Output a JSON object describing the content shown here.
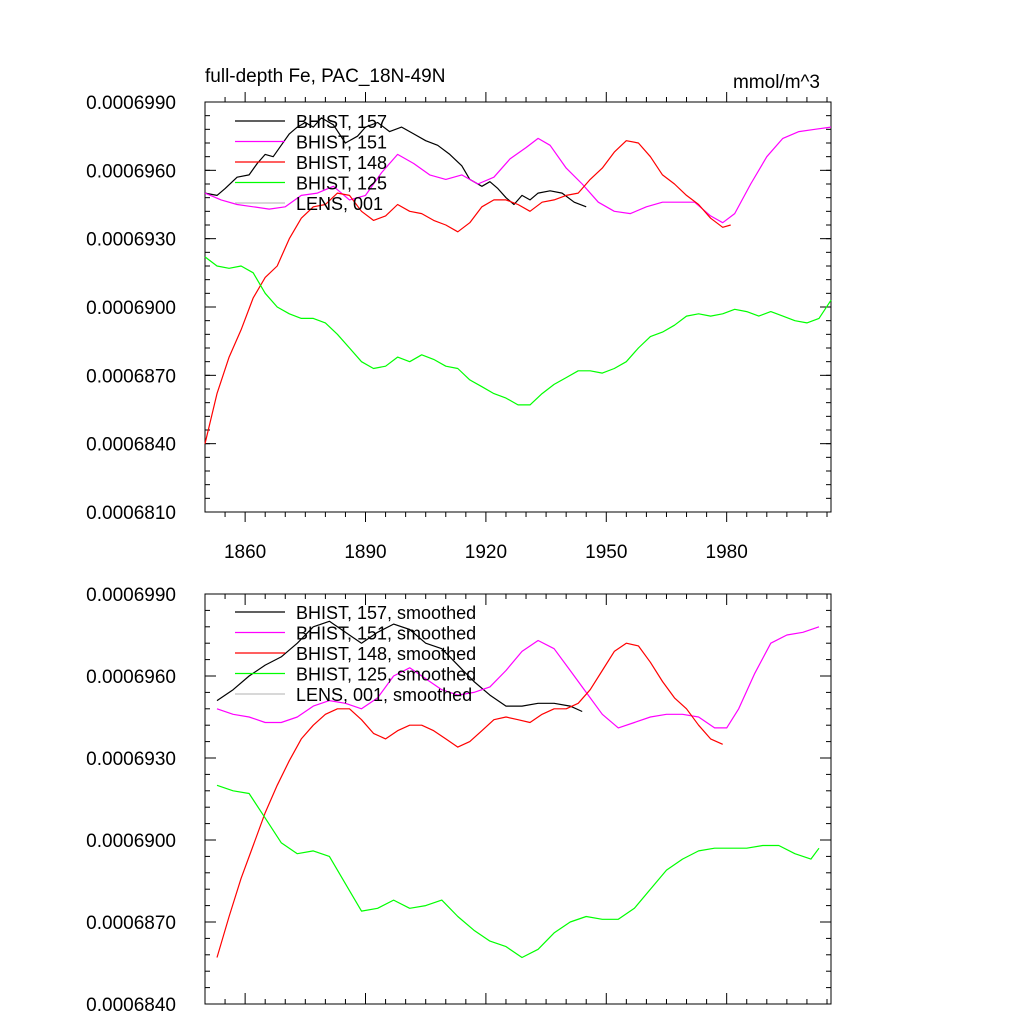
{
  "chart_data": [
    {
      "type": "line",
      "title": "full-depth Fe, PAC_18N-49N",
      "units": "mmol/m^3",
      "xlim": [
        1850,
        2006
      ],
      "ylim": [
        0.000681,
        0.000699
      ],
      "yticks": [
        0.000681,
        0.000684,
        0.000687,
        0.00069,
        0.000693,
        0.000696,
        0.000699
      ],
      "ytick_labels": [
        "0.0006810",
        "0.0006840",
        "0.0006870",
        "0.0006900",
        "0.0006930",
        "0.0006960",
        "0.0006990"
      ],
      "xticks": [
        1860,
        1890,
        1920,
        1950,
        1980
      ],
      "xtick_labels": [
        "1860",
        "1890",
        "1920",
        "1950",
        "1980"
      ],
      "legend_position": "top-left",
      "series": [
        {
          "name": "BHIST, 157",
          "color": "#000000",
          "x": [
            1850,
            1853,
            1855,
            1858,
            1861,
            1863,
            1865,
            1867,
            1869,
            1871,
            1873,
            1875,
            1877,
            1879,
            1882,
            1885,
            1888,
            1890,
            1893,
            1896,
            1899,
            1902,
            1905,
            1908,
            1911,
            1914,
            1916,
            1919,
            1921,
            1923,
            1925,
            1927,
            1929,
            1931,
            1933,
            1936,
            1939,
            1942,
            1945
          ],
          "y": [
            0.000695,
            0.0006949,
            0.0006952,
            0.0006957,
            0.0006958,
            0.0006963,
            0.0006967,
            0.0006966,
            0.0006971,
            0.0006976,
            0.0006979,
            0.0006981,
            0.0006979,
            0.0006983,
            0.000698,
            0.0006972,
            0.0006975,
            0.0006979,
            0.0006981,
            0.0006977,
            0.0006979,
            0.0006976,
            0.0006973,
            0.0006971,
            0.0006967,
            0.0006962,
            0.0006956,
            0.0006953,
            0.0006955,
            0.0006952,
            0.0006948,
            0.0006945,
            0.0006949,
            0.0006947,
            0.000695,
            0.0006951,
            0.000695,
            0.0006946,
            0.0006944
          ]
        },
        {
          "name": "BHIST, 151",
          "color": "#ff00ff",
          "x": [
            1850,
            1854,
            1858,
            1862,
            1866,
            1870,
            1874,
            1878,
            1882,
            1886,
            1890,
            1894,
            1898,
            1902,
            1906,
            1910,
            1914,
            1918,
            1922,
            1926,
            1930,
            1933,
            1936,
            1940,
            1944,
            1948,
            1952,
            1956,
            1960,
            1964,
            1968,
            1972,
            1976,
            1979,
            1982,
            1986,
            1990,
            1994,
            1998,
            2002,
            2006
          ],
          "y": [
            0.000695,
            0.0006947,
            0.0006945,
            0.0006944,
            0.0006943,
            0.0006944,
            0.0006949,
            0.000695,
            0.0006953,
            0.0006947,
            0.0006949,
            0.0006959,
            0.0006967,
            0.0006963,
            0.0006958,
            0.0006956,
            0.0006958,
            0.0006954,
            0.0006957,
            0.0006965,
            0.000697,
            0.0006974,
            0.0006971,
            0.0006961,
            0.0006954,
            0.0006946,
            0.0006942,
            0.0006941,
            0.0006944,
            0.0006946,
            0.0006946,
            0.0006946,
            0.000694,
            0.0006937,
            0.0006941,
            0.0006954,
            0.0006966,
            0.0006974,
            0.0006977,
            0.0006978,
            0.0006979
          ]
        },
        {
          "name": "BHIST, 148",
          "color": "#ff0000",
          "x": [
            1850,
            1853,
            1856,
            1859,
            1862,
            1865,
            1868,
            1871,
            1874,
            1877,
            1880,
            1883,
            1886,
            1889,
            1892,
            1895,
            1898,
            1901,
            1904,
            1907,
            1910,
            1913,
            1916,
            1919,
            1922,
            1925,
            1928,
            1931,
            1934,
            1937,
            1940,
            1943,
            1946,
            1949,
            1952,
            1955,
            1958,
            1961,
            1964,
            1967,
            1970,
            1973,
            1976,
            1979,
            1981
          ],
          "y": [
            0.000684,
            0.0006862,
            0.0006878,
            0.000689,
            0.0006904,
            0.0006913,
            0.0006918,
            0.000693,
            0.0006939,
            0.0006944,
            0.0006945,
            0.000695,
            0.0006949,
            0.0006942,
            0.0006938,
            0.000694,
            0.0006945,
            0.0006942,
            0.0006941,
            0.0006938,
            0.0006936,
            0.0006933,
            0.0006937,
            0.0006944,
            0.0006947,
            0.0006947,
            0.0006945,
            0.0006942,
            0.0006946,
            0.0006947,
            0.0006949,
            0.000695,
            0.0006956,
            0.0006961,
            0.0006968,
            0.0006973,
            0.0006972,
            0.0006966,
            0.0006958,
            0.0006954,
            0.0006949,
            0.0006945,
            0.0006939,
            0.0006935,
            0.0006936
          ]
        },
        {
          "name": "BHIST, 125",
          "color": "#00ff00",
          "x": [
            1850,
            1853,
            1856,
            1859,
            1862,
            1865,
            1868,
            1871,
            1874,
            1877,
            1880,
            1883,
            1886,
            1889,
            1892,
            1895,
            1898,
            1901,
            1904,
            1907,
            1910,
            1913,
            1916,
            1919,
            1922,
            1925,
            1928,
            1931,
            1934,
            1937,
            1940,
            1943,
            1946,
            1949,
            1952,
            1955,
            1958,
            1961,
            1964,
            1967,
            1970,
            1973,
            1976,
            1979,
            1982,
            1985,
            1988,
            1991,
            1994,
            1997,
            2000,
            2003,
            2006
          ],
          "y": [
            0.0006922,
            0.0006918,
            0.0006917,
            0.0006918,
            0.0006915,
            0.0006906,
            0.00069,
            0.0006897,
            0.0006895,
            0.0006895,
            0.0006893,
            0.0006888,
            0.0006882,
            0.0006876,
            0.0006873,
            0.0006874,
            0.0006878,
            0.0006876,
            0.0006879,
            0.0006877,
            0.0006874,
            0.0006873,
            0.0006868,
            0.0006865,
            0.0006862,
            0.000686,
            0.0006857,
            0.0006857,
            0.0006862,
            0.0006866,
            0.0006869,
            0.0006872,
            0.0006872,
            0.0006871,
            0.0006873,
            0.0006876,
            0.0006882,
            0.0006887,
            0.0006889,
            0.0006892,
            0.0006896,
            0.0006897,
            0.0006896,
            0.0006897,
            0.0006899,
            0.0006898,
            0.0006896,
            0.0006898,
            0.0006896,
            0.0006894,
            0.0006893,
            0.0006895,
            0.0006903
          ]
        },
        {
          "name": "LENS, 001",
          "color": "#c0c0c0",
          "x": [],
          "y": []
        }
      ]
    },
    {
      "type": "line",
      "title": "",
      "xlim": [
        1850,
        2006
      ],
      "ylim": [
        0.000684,
        0.000699
      ],
      "yticks": [
        0.000684,
        0.000687,
        0.00069,
        0.000693,
        0.000696,
        0.000699
      ],
      "ytick_labels": [
        "0.0006840",
        "0.0006870",
        "0.0006900",
        "0.0006930",
        "0.0006960",
        "0.0006990"
      ],
      "xticks": [
        1860,
        1890,
        1920,
        1950,
        1980
      ],
      "legend_position": "top-left",
      "series": [
        {
          "name": "BHIST, 157, smoothed",
          "color": "#000000",
          "x": [
            1853,
            1857,
            1861,
            1865,
            1869,
            1873,
            1877,
            1881,
            1885,
            1889,
            1893,
            1897,
            1901,
            1905,
            1909,
            1913,
            1917,
            1921,
            1925,
            1929,
            1933,
            1937,
            1941,
            1944
          ],
          "y": [
            0.0006951,
            0.0006955,
            0.000696,
            0.0006964,
            0.0006967,
            0.0006972,
            0.0006978,
            0.000698,
            0.0006976,
            0.0006972,
            0.0006976,
            0.0006979,
            0.0006977,
            0.0006972,
            0.000697,
            0.0006964,
            0.0006958,
            0.0006953,
            0.0006949,
            0.0006949,
            0.000695,
            0.000695,
            0.0006949,
            0.0006947
          ]
        },
        {
          "name": "BHIST, 151, smoothed",
          "color": "#ff00ff",
          "x": [
            1853,
            1857,
            1861,
            1865,
            1869,
            1873,
            1877,
            1881,
            1885,
            1889,
            1893,
            1897,
            1901,
            1905,
            1909,
            1913,
            1917,
            1921,
            1925,
            1929,
            1933,
            1937,
            1941,
            1945,
            1949,
            1953,
            1957,
            1961,
            1965,
            1969,
            1973,
            1977,
            1980,
            1983,
            1987,
            1991,
            1995,
            1999,
            2003
          ],
          "y": [
            0.0006948,
            0.0006946,
            0.0006945,
            0.0006943,
            0.0006943,
            0.0006945,
            0.0006949,
            0.0006951,
            0.000695,
            0.0006948,
            0.0006952,
            0.000696,
            0.0006963,
            0.0006959,
            0.0006955,
            0.0006953,
            0.0006954,
            0.0006956,
            0.0006962,
            0.0006969,
            0.0006973,
            0.000697,
            0.0006962,
            0.0006954,
            0.0006946,
            0.0006941,
            0.0006943,
            0.0006945,
            0.0006946,
            0.0006946,
            0.0006945,
            0.0006941,
            0.0006941,
            0.0006948,
            0.0006961,
            0.0006972,
            0.0006975,
            0.0006976,
            0.0006978
          ]
        },
        {
          "name": "BHIST, 148, smoothed",
          "color": "#ff0000",
          "x": [
            1853,
            1856,
            1859,
            1862,
            1865,
            1868,
            1871,
            1874,
            1877,
            1880,
            1883,
            1886,
            1889,
            1892,
            1895,
            1898,
            1901,
            1904,
            1907,
            1910,
            1913,
            1916,
            1919,
            1922,
            1925,
            1928,
            1931,
            1934,
            1937,
            1940,
            1943,
            1946,
            1949,
            1952,
            1955,
            1958,
            1961,
            1964,
            1967,
            1970,
            1973,
            1976,
            1979
          ],
          "y": [
            0.0006857,
            0.0006872,
            0.0006886,
            0.0006898,
            0.000691,
            0.000692,
            0.0006929,
            0.0006937,
            0.0006942,
            0.0006946,
            0.0006948,
            0.0006948,
            0.0006944,
            0.0006939,
            0.0006937,
            0.000694,
            0.0006942,
            0.0006942,
            0.000694,
            0.0006937,
            0.0006934,
            0.0006936,
            0.000694,
            0.0006944,
            0.0006945,
            0.0006944,
            0.0006943,
            0.0006946,
            0.0006948,
            0.0006948,
            0.000695,
            0.0006955,
            0.0006962,
            0.0006969,
            0.0006972,
            0.0006971,
            0.0006965,
            0.0006958,
            0.0006952,
            0.0006948,
            0.0006942,
            0.0006937,
            0.0006935
          ]
        },
        {
          "name": "BHIST, 125, smoothed",
          "color": "#00ff00",
          "x": [
            1853,
            1857,
            1861,
            1865,
            1869,
            1873,
            1877,
            1881,
            1885,
            1889,
            1893,
            1897,
            1901,
            1905,
            1909,
            1913,
            1917,
            1921,
            1925,
            1929,
            1933,
            1937,
            1941,
            1945,
            1949,
            1953,
            1957,
            1961,
            1965,
            1969,
            1973,
            1977,
            1981,
            1985,
            1989,
            1993,
            1997,
            2001,
            2003
          ],
          "y": [
            0.000692,
            0.0006918,
            0.0006917,
            0.0006908,
            0.0006899,
            0.0006895,
            0.0006896,
            0.0006894,
            0.0006884,
            0.0006874,
            0.0006875,
            0.0006878,
            0.0006875,
            0.0006876,
            0.0006878,
            0.0006872,
            0.0006867,
            0.0006863,
            0.0006861,
            0.0006857,
            0.000686,
            0.0006866,
            0.000687,
            0.0006872,
            0.0006871,
            0.0006871,
            0.0006875,
            0.0006882,
            0.0006889,
            0.0006893,
            0.0006896,
            0.0006897,
            0.0006897,
            0.0006897,
            0.0006898,
            0.0006898,
            0.0006895,
            0.0006893,
            0.0006897
          ]
        },
        {
          "name": "LENS, 001, smoothed",
          "color": "#c0c0c0",
          "x": [],
          "y": []
        }
      ]
    }
  ]
}
